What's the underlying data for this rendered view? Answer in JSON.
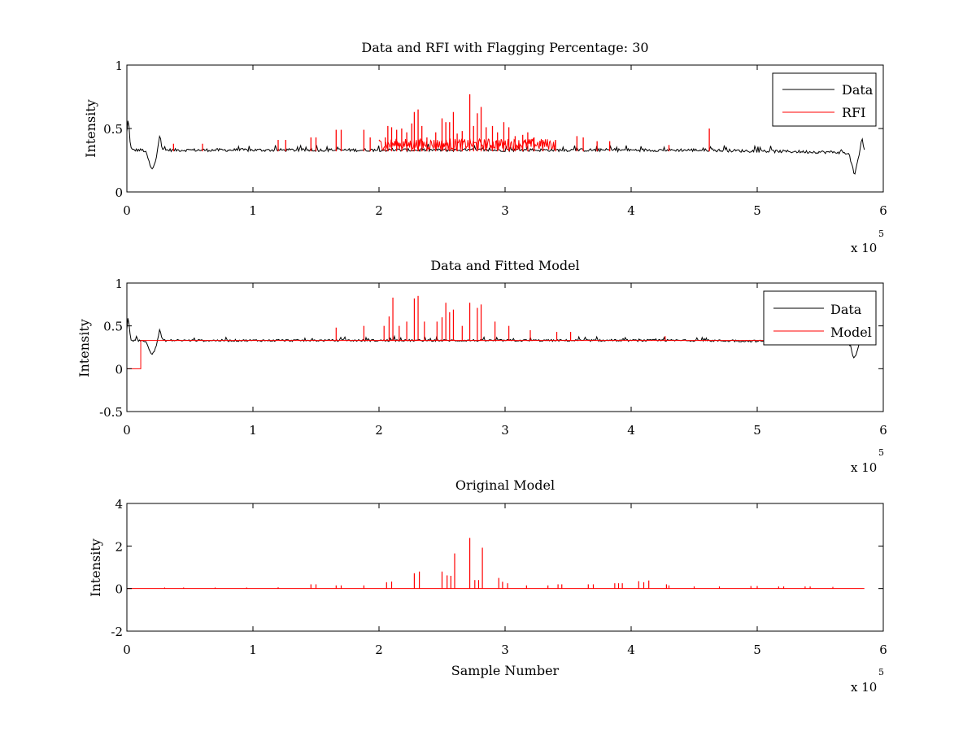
{
  "figure": {
    "background": "#ffffff"
  },
  "chart_data": [
    {
      "type": "line",
      "title": "Data and RFI with Flagging Percentage: 30",
      "xlabel": "",
      "ylabel": "Intensity",
      "xlim": [
        0,
        6
      ],
      "ylim": [
        0,
        1
      ],
      "xticks": [
        "0",
        "1",
        "2",
        "3",
        "4",
        "5",
        "6"
      ],
      "xtick_values": [
        0,
        1,
        2,
        3,
        4,
        5,
        6
      ],
      "yticks": [
        "0",
        "0.5",
        "1"
      ],
      "ytick_values": [
        0,
        0.5,
        1
      ],
      "x_exponent": {
        "base": "x 10",
        "power": "5"
      },
      "legend": {
        "position": "top-right",
        "entries": [
          "Data",
          "RFI"
        ]
      },
      "grid": false,
      "series": [
        {
          "name": "Data",
          "color": "#000000",
          "kind": "noisy-baseline",
          "baseline": 0.33,
          "noise": 0.012,
          "x_end": 5.85,
          "features": [
            {
              "type": "bump",
              "x": 0.01,
              "width": 0.02,
              "value": 0.56
            },
            {
              "type": "dip",
              "x": 0.2,
              "width": 0.05,
              "value": 0.18
            },
            {
              "type": "bump",
              "x": 0.26,
              "width": 0.02,
              "value": 0.46
            },
            {
              "type": "dip",
              "x": 5.77,
              "width": 0.04,
              "value": 0.16
            },
            {
              "type": "bump",
              "x": 5.83,
              "width": 0.02,
              "value": 0.44
            }
          ]
        },
        {
          "name": "RFI",
          "color": "#ff0000",
          "kind": "spikes",
          "points": [
            [
              0.37,
              0.38
            ],
            [
              0.6,
              0.38
            ],
            [
              1.2,
              0.41
            ],
            [
              1.26,
              0.41
            ],
            [
              1.46,
              0.43
            ],
            [
              1.5,
              0.43
            ],
            [
              1.66,
              0.49
            ],
            [
              1.7,
              0.49
            ],
            [
              1.88,
              0.49
            ],
            [
              1.93,
              0.43
            ],
            [
              2.05,
              0.43
            ],
            [
              2.07,
              0.52
            ],
            [
              2.1,
              0.51
            ],
            [
              2.14,
              0.49
            ],
            [
              2.18,
              0.5
            ],
            [
              2.22,
              0.47
            ],
            [
              2.26,
              0.54
            ],
            [
              2.28,
              0.63
            ],
            [
              2.31,
              0.65
            ],
            [
              2.34,
              0.52
            ],
            [
              2.38,
              0.43
            ],
            [
              2.45,
              0.47
            ],
            [
              2.5,
              0.58
            ],
            [
              2.53,
              0.55
            ],
            [
              2.56,
              0.55
            ],
            [
              2.59,
              0.63
            ],
            [
              2.62,
              0.46
            ],
            [
              2.66,
              0.48
            ],
            [
              2.72,
              0.77
            ],
            [
              2.75,
              0.52
            ],
            [
              2.78,
              0.62
            ],
            [
              2.81,
              0.67
            ],
            [
              2.85,
              0.51
            ],
            [
              2.9,
              0.52
            ],
            [
              2.94,
              0.47
            ],
            [
              2.99,
              0.55
            ],
            [
              3.03,
              0.51
            ],
            [
              3.08,
              0.44
            ],
            [
              3.14,
              0.45
            ],
            [
              3.18,
              0.47
            ],
            [
              3.23,
              0.43
            ],
            [
              3.3,
              0.41
            ],
            [
              3.4,
              0.41
            ],
            [
              3.57,
              0.44
            ],
            [
              3.62,
              0.43
            ],
            [
              3.73,
              0.4
            ],
            [
              3.83,
              0.4
            ],
            [
              4.3,
              0.37
            ],
            [
              4.62,
              0.5
            ]
          ]
        }
      ]
    },
    {
      "type": "line",
      "title": "Data and Fitted Model",
      "xlabel": "",
      "ylabel": "Intensity",
      "xlim": [
        0,
        6
      ],
      "ylim": [
        -0.5,
        1
      ],
      "xticks": [
        "0",
        "1",
        "2",
        "3",
        "4",
        "5",
        "6"
      ],
      "xtick_values": [
        0,
        1,
        2,
        3,
        4,
        5,
        6
      ],
      "yticks": [
        "-0.5",
        "0",
        "0.5",
        "1"
      ],
      "ytick_values": [
        -0.5,
        0,
        0.5,
        1
      ],
      "x_exponent": {
        "base": "x 10",
        "power": "5"
      },
      "legend": {
        "position": "top-right",
        "entries": [
          "Data",
          "Model"
        ]
      },
      "grid": false,
      "series": [
        {
          "name": "Data",
          "color": "#000000",
          "kind": "noisy-baseline",
          "baseline": 0.33,
          "noise": 0.012,
          "x_end": 5.85,
          "features": [
            {
              "type": "bump",
              "x": 0.01,
              "width": 0.02,
              "value": 0.56
            },
            {
              "type": "dip",
              "x": 0.2,
              "width": 0.05,
              "value": 0.18
            },
            {
              "type": "bump",
              "x": 0.26,
              "width": 0.02,
              "value": 0.46
            },
            {
              "type": "dip",
              "x": 5.77,
              "width": 0.04,
              "value": 0.15
            },
            {
              "type": "bump",
              "x": 5.83,
              "width": 0.02,
              "value": 0.44
            }
          ]
        },
        {
          "name": "Model",
          "color": "#ff0000",
          "kind": "step-spikes",
          "baseline": 0.33,
          "start": [
            0.0,
            0.0
          ],
          "step_x": 0.11,
          "points": [
            [
              1.66,
              0.48
            ],
            [
              1.88,
              0.5
            ],
            [
              2.04,
              0.5
            ],
            [
              2.08,
              0.61
            ],
            [
              2.11,
              0.83
            ],
            [
              2.16,
              0.5
            ],
            [
              2.22,
              0.55
            ],
            [
              2.28,
              0.82
            ],
            [
              2.31,
              0.85
            ],
            [
              2.36,
              0.55
            ],
            [
              2.46,
              0.55
            ],
            [
              2.5,
              0.6
            ],
            [
              2.53,
              0.77
            ],
            [
              2.56,
              0.66
            ],
            [
              2.59,
              0.69
            ],
            [
              2.66,
              0.5
            ],
            [
              2.72,
              0.77
            ],
            [
              2.78,
              0.71
            ],
            [
              2.81,
              0.75
            ],
            [
              2.92,
              0.55
            ],
            [
              3.03,
              0.5
            ],
            [
              3.2,
              0.45
            ],
            [
              3.41,
              0.43
            ],
            [
              3.52,
              0.43
            ],
            [
              4.27,
              0.38
            ]
          ]
        }
      ]
    },
    {
      "type": "line",
      "title": "Original Model",
      "xlabel": "Sample Number",
      "ylabel": "Intensity",
      "xlim": [
        0,
        6
      ],
      "ylim": [
        -2,
        4
      ],
      "xticks": [
        "0",
        "1",
        "2",
        "3",
        "4",
        "5",
        "6"
      ],
      "xtick_values": [
        0,
        1,
        2,
        3,
        4,
        5,
        6
      ],
      "yticks": [
        "-2",
        "0",
        "2",
        "4"
      ],
      "ytick_values": [
        -2,
        0,
        2,
        4
      ],
      "x_exponent": {
        "base": "x 10",
        "power": "5"
      },
      "legend": null,
      "grid": false,
      "series": [
        {
          "color": "#ff0000",
          "kind": "stems",
          "baseline": 0,
          "x_end": 5.85,
          "points": [
            [
              0.3,
              0.05
            ],
            [
              0.45,
              0.05
            ],
            [
              0.7,
              0.05
            ],
            [
              0.95,
              0.05
            ],
            [
              1.2,
              0.06
            ],
            [
              1.46,
              0.2
            ],
            [
              1.5,
              0.2
            ],
            [
              1.66,
              0.15
            ],
            [
              1.7,
              0.15
            ],
            [
              1.88,
              0.15
            ],
            [
              2.06,
              0.3
            ],
            [
              2.1,
              0.33
            ],
            [
              2.28,
              0.72
            ],
            [
              2.32,
              0.8
            ],
            [
              2.5,
              0.8
            ],
            [
              2.54,
              0.62
            ],
            [
              2.57,
              0.6
            ],
            [
              2.6,
              1.65
            ],
            [
              2.72,
              2.38
            ],
            [
              2.76,
              0.4
            ],
            [
              2.79,
              0.4
            ],
            [
              2.82,
              1.92
            ],
            [
              2.95,
              0.5
            ],
            [
              2.98,
              0.32
            ],
            [
              3.02,
              0.25
            ],
            [
              3.17,
              0.15
            ],
            [
              3.34,
              0.15
            ],
            [
              3.42,
              0.2
            ],
            [
              3.45,
              0.2
            ],
            [
              3.66,
              0.2
            ],
            [
              3.7,
              0.2
            ],
            [
              3.87,
              0.25
            ],
            [
              3.9,
              0.25
            ],
            [
              3.93,
              0.25
            ],
            [
              4.06,
              0.35
            ],
            [
              4.1,
              0.3
            ],
            [
              4.14,
              0.38
            ],
            [
              4.28,
              0.2
            ],
            [
              4.3,
              0.15
            ],
            [
              4.5,
              0.1
            ],
            [
              4.7,
              0.1
            ],
            [
              4.95,
              0.12
            ],
            [
              5.0,
              0.12
            ],
            [
              5.17,
              0.1
            ],
            [
              5.21,
              0.1
            ],
            [
              5.38,
              0.1
            ],
            [
              5.42,
              0.1
            ],
            [
              5.6,
              0.08
            ]
          ]
        }
      ]
    }
  ]
}
